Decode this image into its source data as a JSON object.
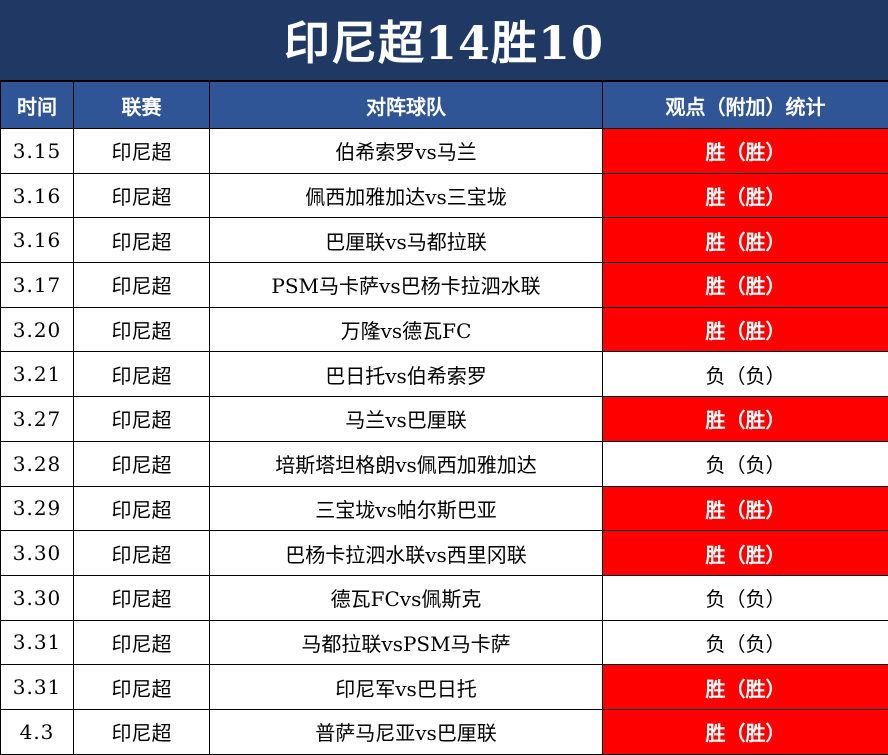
{
  "title": "印尼超14胜10",
  "headers": [
    "时间",
    "联赛",
    "对阵球队",
    "观点（附加）统计"
  ],
  "colors": {
    "title_bg": "#1f3864",
    "header_bg": "#2f5597",
    "win_bg": "#ff0000"
  },
  "rows": [
    {
      "date": "3.15",
      "league": "印尼超",
      "match": "伯希索罗vs马兰",
      "result": "胜（胜）",
      "outcome": "win"
    },
    {
      "date": "3.16",
      "league": "印尼超",
      "match": "佩西加雅加达vs三宝垅",
      "result": "胜（胜）",
      "outcome": "win"
    },
    {
      "date": "3.16",
      "league": "印尼超",
      "match": "巴厘联vs马都拉联",
      "result": "胜（胜）",
      "outcome": "win"
    },
    {
      "date": "3.17",
      "league": "印尼超",
      "match": "PSM马卡萨vs巴杨卡拉泗水联",
      "result": "胜（胜）",
      "outcome": "win"
    },
    {
      "date": "3.20",
      "league": "印尼超",
      "match": "万隆vs德瓦FC",
      "result": "胜（胜）",
      "outcome": "win"
    },
    {
      "date": "3.21",
      "league": "印尼超",
      "match": "巴日托vs伯希索罗",
      "result": "负（负）",
      "outcome": "loss"
    },
    {
      "date": "3.27",
      "league": "印尼超",
      "match": "马兰vs巴厘联",
      "result": "胜（胜）",
      "outcome": "win"
    },
    {
      "date": "3.28",
      "league": "印尼超",
      "match": "培斯塔坦格朗vs佩西加雅加达",
      "result": "负（负）",
      "outcome": "loss"
    },
    {
      "date": "3.29",
      "league": "印尼超",
      "match": "三宝垅vs帕尔斯巴亚",
      "result": "胜（胜）",
      "outcome": "win"
    },
    {
      "date": "3.30",
      "league": "印尼超",
      "match": "巴杨卡拉泗水联vs西里冈联",
      "result": "胜（胜）",
      "outcome": "win"
    },
    {
      "date": "3.30",
      "league": "印尼超",
      "match": "德瓦FCvs佩斯克",
      "result": "负（负）",
      "outcome": "loss"
    },
    {
      "date": "3.31",
      "league": "印尼超",
      "match": "马都拉联vsPSM马卡萨",
      "result": "负（负）",
      "outcome": "loss"
    },
    {
      "date": "3.31",
      "league": "印尼超",
      "match": "印尼军vs巴日托",
      "result": "胜（胜）",
      "outcome": "win"
    },
    {
      "date": "4.3",
      "league": "印尼超",
      "match": "普萨马尼亚vs巴厘联",
      "result": "胜（胜）",
      "outcome": "win"
    }
  ]
}
